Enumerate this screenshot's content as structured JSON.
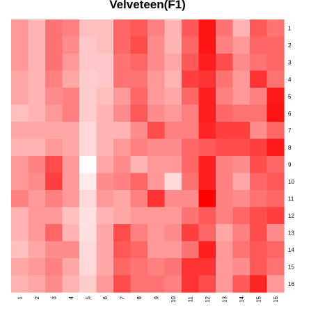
{
  "chart_data": {
    "type": "heatmap",
    "title": "Velveteen(F1)",
    "x_labels": [
      "1",
      "2",
      "3",
      "4",
      "5",
      "6",
      "7",
      "8",
      "9",
      "10",
      "11",
      "12",
      "13",
      "14",
      "15",
      "16"
    ],
    "y_labels": [
      "1",
      "2",
      "3",
      "4",
      "5",
      "6",
      "7",
      "8",
      "9",
      "10",
      "11",
      "12",
      "13",
      "14",
      "15",
      "16"
    ],
    "value_range": [
      0,
      1
    ],
    "color_scale": {
      "low": "#ffffff",
      "high": "#ff0000"
    },
    "values": [
      [
        0.4,
        0.3,
        0.55,
        0.5,
        0.25,
        0.25,
        0.6,
        0.65,
        0.5,
        0.3,
        0.65,
        0.92,
        0.55,
        0.3,
        0.65,
        0.55
      ],
      [
        0.4,
        0.3,
        0.55,
        0.45,
        0.22,
        0.25,
        0.6,
        0.7,
        0.45,
        0.3,
        0.6,
        0.92,
        0.5,
        0.4,
        0.6,
        0.6
      ],
      [
        0.4,
        0.3,
        0.55,
        0.4,
        0.22,
        0.22,
        0.55,
        0.6,
        0.45,
        0.35,
        0.65,
        0.88,
        0.7,
        0.45,
        0.55,
        0.6
      ],
      [
        0.35,
        0.3,
        0.5,
        0.35,
        0.2,
        0.22,
        0.55,
        0.55,
        0.4,
        0.3,
        0.75,
        0.8,
        0.55,
        0.4,
        0.8,
        0.55
      ],
      [
        0.35,
        0.3,
        0.45,
        0.5,
        0.2,
        0.25,
        0.4,
        0.6,
        0.4,
        0.35,
        0.6,
        0.88,
        0.5,
        0.4,
        0.5,
        0.9
      ],
      [
        0.25,
        0.3,
        0.4,
        0.5,
        0.2,
        0.3,
        0.45,
        0.65,
        0.45,
        0.4,
        0.5,
        0.88,
        0.6,
        0.55,
        0.55,
        0.92
      ],
      [
        0.35,
        0.35,
        0.35,
        0.35,
        0.15,
        0.3,
        0.3,
        0.45,
        0.7,
        0.5,
        0.5,
        0.85,
        0.75,
        0.75,
        0.45,
        0.6
      ],
      [
        0.3,
        0.3,
        0.4,
        0.35,
        0.15,
        0.3,
        0.4,
        0.5,
        0.45,
        0.45,
        0.6,
        0.65,
        0.7,
        0.7,
        0.75,
        0.9
      ],
      [
        0.4,
        0.5,
        0.7,
        0.4,
        0.0,
        0.35,
        0.45,
        0.3,
        0.4,
        0.4,
        0.6,
        0.88,
        0.5,
        0.45,
        0.7,
        0.6
      ],
      [
        0.4,
        0.45,
        0.75,
        0.4,
        0.08,
        0.45,
        0.5,
        0.6,
        0.4,
        0.15,
        0.55,
        0.88,
        0.5,
        0.35,
        0.6,
        0.65
      ],
      [
        0.5,
        0.4,
        0.5,
        0.4,
        0.15,
        0.4,
        0.35,
        0.5,
        0.8,
        0.45,
        0.45,
        1.0,
        0.5,
        0.45,
        0.55,
        0.6
      ],
      [
        0.3,
        0.4,
        0.4,
        0.25,
        0.12,
        0.3,
        0.35,
        0.4,
        0.4,
        0.4,
        0.55,
        0.65,
        0.5,
        0.6,
        0.7,
        0.75
      ],
      [
        0.3,
        0.4,
        0.6,
        0.3,
        0.12,
        0.35,
        0.7,
        0.5,
        0.4,
        0.45,
        0.75,
        0.6,
        0.35,
        0.5,
        0.7,
        0.45
      ],
      [
        0.25,
        0.35,
        0.45,
        0.45,
        0.15,
        0.35,
        0.65,
        0.6,
        0.4,
        0.4,
        0.55,
        0.88,
        0.4,
        0.55,
        0.65,
        0.6
      ],
      [
        0.35,
        0.4,
        0.5,
        0.35,
        0.15,
        0.35,
        0.6,
        0.55,
        0.5,
        0.55,
        0.8,
        0.8,
        0.4,
        0.45,
        0.65,
        0.55
      ],
      [
        0.3,
        0.35,
        0.45,
        0.3,
        0.2,
        0.4,
        0.7,
        0.55,
        0.55,
        0.5,
        0.8,
        0.7,
        0.4,
        0.65,
        0.85,
        0.4
      ]
    ]
  }
}
